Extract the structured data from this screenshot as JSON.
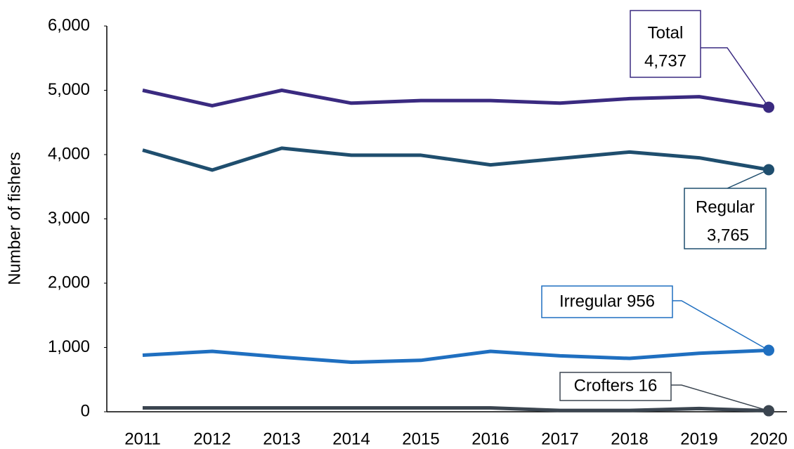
{
  "chart_data": {
    "type": "line",
    "y_label": "Number of fishers",
    "categories": [
      "2011",
      "2012",
      "2013",
      "2014",
      "2015",
      "2016",
      "2017",
      "2018",
      "2019",
      "2020"
    ],
    "series": [
      {
        "name": "Total",
        "color": "#3a2a80",
        "values": [
          5000,
          4760,
          5000,
          4800,
          4840,
          4840,
          4800,
          4870,
          4900,
          4737
        ]
      },
      {
        "name": "Regular",
        "color": "#1f4e6e",
        "values": [
          4070,
          3760,
          4100,
          3990,
          3990,
          3840,
          3940,
          4040,
          3950,
          3765
        ]
      },
      {
        "name": "Irregular",
        "color": "#1f6fc0",
        "values": [
          880,
          940,
          850,
          770,
          800,
          940,
          870,
          830,
          910,
          956
        ]
      },
      {
        "name": "Crofters",
        "color": "#3b4550",
        "values": [
          60,
          60,
          60,
          60,
          60,
          60,
          20,
          20,
          50,
          16
        ]
      }
    ],
    "annotations": [
      {
        "lines": [
          "Total",
          "4,737"
        ]
      },
      {
        "lines": [
          "Regular",
          "3,765"
        ]
      },
      {
        "lines": [
          "Irregular 956"
        ]
      },
      {
        "lines": [
          "Crofters 16"
        ]
      }
    ],
    "ylim": [
      0,
      6000
    ],
    "yticks": [
      {
        "value": 0,
        "label": "0"
      },
      {
        "value": 1000,
        "label": "1,000"
      },
      {
        "value": 2000,
        "label": "2,000"
      },
      {
        "value": 3000,
        "label": "3,000"
      },
      {
        "value": 4000,
        "label": "4,000"
      },
      {
        "value": 5000,
        "label": "5,000"
      },
      {
        "value": 6000,
        "label": "6,000"
      }
    ],
    "grid": false
  }
}
